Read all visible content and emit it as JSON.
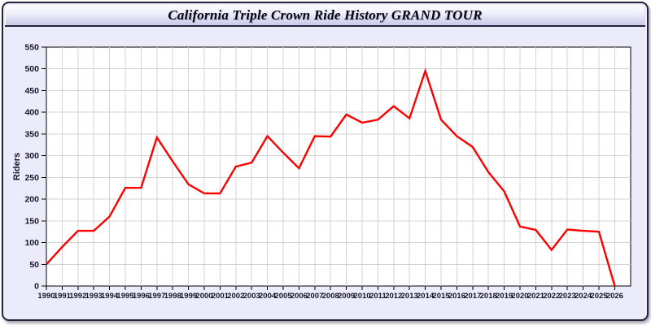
{
  "window": {
    "title": "California Triple Crown Ride History GRAND TOUR"
  },
  "colors": {
    "frame_bg": "#ebebfa",
    "frame_border": "#23233c",
    "titlebar_top": "#fcfcff",
    "titlebar_bottom": "#c9c9ea",
    "plot_bg": "#ffffff",
    "plot_border": "#000000",
    "grid": "#d3d3d3",
    "tick_text": "#15152a",
    "line": "#ff0000"
  },
  "chart_data": {
    "type": "line",
    "title": "California Triple Crown Ride History GRAND TOUR",
    "xlabel": "",
    "ylabel": "Riders",
    "ylim": [
      0,
      550
    ],
    "ytick_step": 50,
    "grid": true,
    "legend_position": "none",
    "x": [
      1990,
      1991,
      1992,
      1993,
      1994,
      1995,
      1996,
      1997,
      1998,
      1999,
      2000,
      2001,
      2002,
      2003,
      2004,
      2005,
      2006,
      2007,
      2008,
      2009,
      2010,
      2011,
      2012,
      2013,
      2014,
      2015,
      2016,
      2017,
      2018,
      2019,
      2020,
      2021,
      2022,
      2023,
      2024,
      2025,
      2026
    ],
    "series": [
      {
        "name": "Riders",
        "values": [
          50,
          90,
          127,
          127,
          160,
          226,
          226,
          342,
          287,
          234,
          213,
          213,
          275,
          284,
          345,
          307,
          271,
          345,
          344,
          395,
          376,
          383,
          414,
          386,
          495,
          383,
          345,
          320,
          262,
          218,
          137,
          129,
          83,
          130,
          127,
          125,
          0
        ]
      }
    ]
  }
}
